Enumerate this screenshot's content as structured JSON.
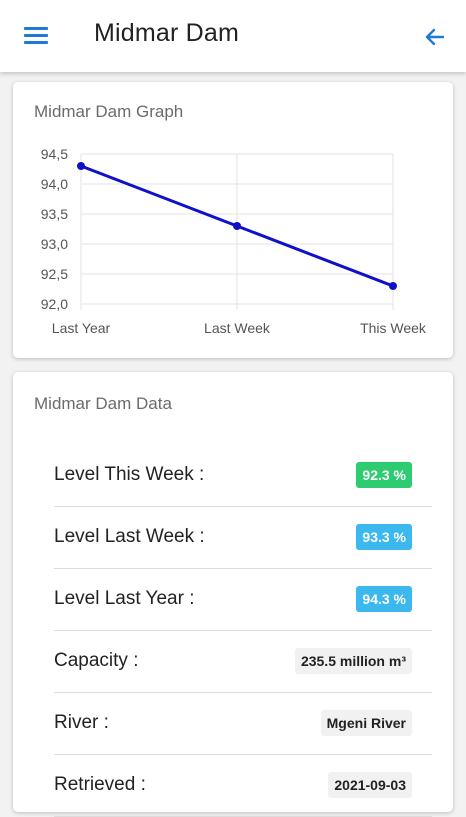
{
  "header": {
    "title": "Midmar Dam",
    "menu_icon": "hamburger-menu-icon",
    "back_icon": "arrow-left-icon",
    "accent": "#1f7ad6"
  },
  "graph_card": {
    "title": "Midmar Dam Graph"
  },
  "chart_data": {
    "type": "line",
    "categories": [
      "Last Year",
      "Last Week",
      "This Week"
    ],
    "series": [
      {
        "values": [
          94.3,
          93.3,
          92.3
        ],
        "color": "#1010c8"
      }
    ],
    "y_ticks": [
      "94,5",
      "94,0",
      "93,5",
      "93,0",
      "92,5",
      "92,0"
    ],
    "ylim": [
      92.0,
      94.5
    ],
    "grid": true
  },
  "data_card": {
    "title": "Midmar Dam Data",
    "rows": [
      {
        "label": "Level This Week :",
        "value": "92.3 %",
        "color": "#2ecc71"
      },
      {
        "label": "Level Last Week :",
        "value": "93.3 %",
        "color": "#3bb9ee"
      },
      {
        "label": "Level Last Year :",
        "value": "94.3 %",
        "color": "#3bb9ee"
      },
      {
        "label": "Capacity :",
        "value": "235.5 million m³",
        "color": "#f1f1f1"
      },
      {
        "label": "River :",
        "value": "Mgeni River",
        "color": "#f1f1f1"
      },
      {
        "label": "Retrieved :",
        "value": "2021-09-03",
        "color": "#f1f1f1"
      }
    ]
  }
}
